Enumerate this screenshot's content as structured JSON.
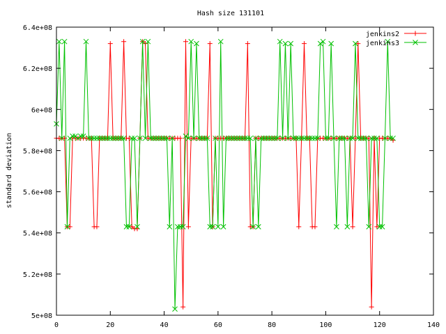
{
  "chart_data": {
    "type": "line",
    "title": "Hash size 131101",
    "xlabel": "",
    "ylabel": "standard deviation",
    "xlim": [
      0,
      140
    ],
    "ylim": [
      500000000,
      640000000
    ],
    "xticks": [
      0,
      20,
      40,
      60,
      80,
      100,
      120,
      140
    ],
    "xtick_labels": [
      "0",
      "20",
      "40",
      "60",
      "80",
      "100",
      "120",
      "140"
    ],
    "yticks": [
      500000000,
      520000000,
      540000000,
      560000000,
      580000000,
      600000000,
      620000000,
      640000000
    ],
    "ytick_labels": [
      "5e+08",
      "5.2e+08",
      "5.4e+08",
      "5.6e+08",
      "5.8e+08",
      "6e+08",
      "6.2e+08",
      "6.4e+08"
    ],
    "grid": false,
    "legend_position": "top-right",
    "series": [
      {
        "name": "jenkins2",
        "color": "#ff0000",
        "marker": "plus",
        "x": [
          0,
          1,
          2,
          3,
          4,
          5,
          6,
          7,
          8,
          9,
          10,
          11,
          12,
          13,
          14,
          15,
          16,
          17,
          18,
          19,
          20,
          21,
          22,
          23,
          24,
          25,
          26,
          27,
          28,
          29,
          30,
          31,
          32,
          33,
          34,
          35,
          36,
          37,
          38,
          39,
          40,
          41,
          42,
          43,
          44,
          45,
          46,
          47,
          48,
          49,
          50,
          51,
          52,
          53,
          54,
          55,
          56,
          57,
          58,
          59,
          60,
          61,
          62,
          63,
          64,
          65,
          66,
          67,
          68,
          69,
          70,
          71,
          72,
          73,
          74,
          75,
          76,
          77,
          78,
          79,
          80,
          81,
          82,
          83,
          84,
          85,
          86,
          87,
          88,
          89,
          90,
          91,
          92,
          93,
          94,
          95,
          96,
          97,
          98,
          99,
          100,
          101,
          102,
          103,
          104,
          105,
          106,
          107,
          108,
          109,
          110,
          111,
          112,
          113,
          114,
          115,
          116,
          117,
          118,
          119,
          120,
          121,
          122,
          123,
          124,
          125
        ],
        "y": [
          586,
          586,
          586,
          586,
          543,
          543,
          586,
          586,
          586,
          586,
          586,
          586,
          586,
          586,
          543,
          543,
          586,
          586,
          586,
          586,
          632,
          586,
          586,
          586,
          586,
          633,
          586,
          586,
          543,
          542,
          542,
          586,
          633,
          632,
          586,
          586,
          586,
          586,
          586,
          586,
          586,
          586,
          586,
          586,
          586,
          586,
          586,
          504,
          633,
          543,
          586,
          586,
          586,
          586,
          586,
          586,
          586,
          632,
          543,
          586,
          586,
          586,
          586,
          586,
          586,
          586,
          586,
          586,
          586,
          586,
          586,
          632,
          543,
          543,
          586,
          586,
          586,
          586,
          586,
          586,
          586,
          586,
          586,
          586,
          586,
          586,
          586,
          586,
          586,
          586,
          543,
          586,
          632,
          586,
          586,
          543,
          543,
          586,
          586,
          586,
          586,
          586,
          586,
          586,
          586,
          586,
          586,
          586,
          586,
          586,
          543,
          586,
          632,
          586,
          586,
          586,
          586,
          504,
          586,
          543,
          586,
          586,
          586,
          586,
          586,
          585
        ]
      },
      {
        "name": "jenkins3",
        "color": "#00c000",
        "marker": "x",
        "x": [
          0,
          1,
          2,
          3,
          4,
          5,
          6,
          7,
          8,
          9,
          10,
          11,
          12,
          13,
          14,
          15,
          16,
          17,
          18,
          19,
          20,
          21,
          22,
          23,
          24,
          25,
          26,
          27,
          28,
          29,
          30,
          31,
          32,
          33,
          34,
          35,
          36,
          37,
          38,
          39,
          40,
          41,
          42,
          43,
          44,
          45,
          46,
          47,
          48,
          49,
          50,
          51,
          52,
          53,
          54,
          55,
          56,
          57,
          58,
          59,
          60,
          61,
          62,
          63,
          64,
          65,
          66,
          67,
          68,
          69,
          70,
          71,
          72,
          73,
          74,
          75,
          76,
          77,
          78,
          79,
          80,
          81,
          82,
          83,
          84,
          85,
          86,
          87,
          88,
          89,
          90,
          91,
          92,
          93,
          94,
          95,
          96,
          97,
          98,
          99,
          100,
          101,
          102,
          103,
          104,
          105,
          106,
          107,
          108,
          109,
          110,
          111,
          112,
          113,
          114,
          115,
          116,
          117,
          118,
          119,
          120,
          121,
          122,
          123,
          124,
          125
        ],
        "y": [
          593,
          633,
          586,
          633,
          543,
          586,
          587,
          587,
          586,
          587,
          587,
          633,
          586,
          586,
          586,
          586,
          586,
          586,
          586,
          586,
          586,
          586,
          586,
          586,
          586,
          586,
          543,
          543,
          586,
          586,
          543,
          586,
          633,
          586,
          633,
          586,
          586,
          586,
          586,
          586,
          586,
          586,
          543,
          586,
          503,
          543,
          543,
          543,
          587,
          586,
          633,
          586,
          632,
          586,
          586,
          586,
          586,
          543,
          543,
          586,
          543,
          633,
          543,
          586,
          586,
          586,
          586,
          586,
          586,
          586,
          586,
          586,
          586,
          543,
          586,
          543,
          586,
          586,
          586,
          586,
          586,
          586,
          586,
          633,
          586,
          632,
          586,
          632,
          586,
          586,
          586,
          586,
          586,
          586,
          586,
          586,
          586,
          586,
          632,
          633,
          586,
          586,
          632,
          586,
          543,
          586,
          586,
          586,
          543,
          586,
          586,
          632,
          586,
          586,
          586,
          586,
          543,
          586,
          586,
          586,
          543,
          543,
          586,
          633,
          586,
          586
        ]
      }
    ]
  }
}
